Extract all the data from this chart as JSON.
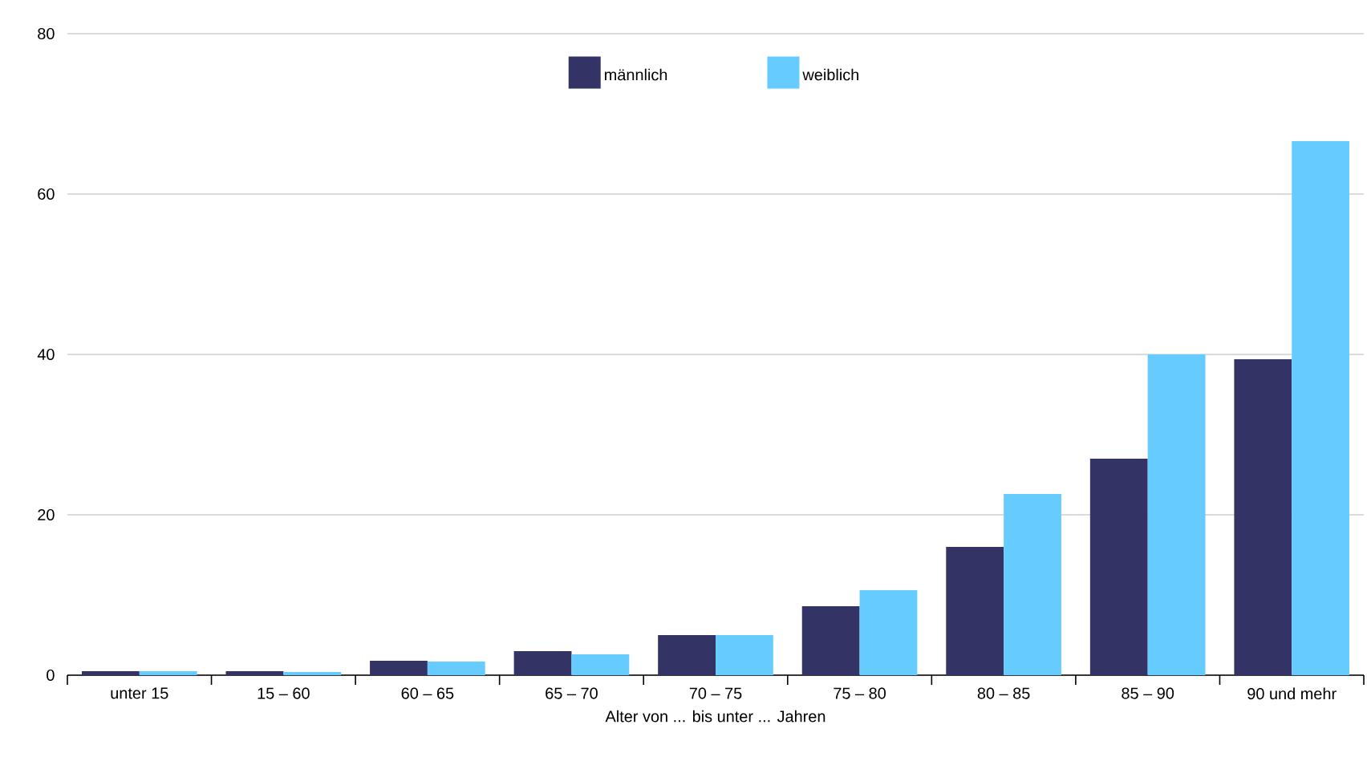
{
  "chart_data": {
    "type": "bar",
    "categories": [
      "unter 15",
      "15 – 60",
      "60 – 65",
      "65 – 70",
      "70 – 75",
      "75 – 80",
      "80 – 85",
      "85 – 90",
      "90 und mehr"
    ],
    "series": [
      {
        "name": "männlich",
        "color": "#333366",
        "values": [
          0.5,
          0.5,
          1.8,
          3.0,
          5.0,
          8.6,
          16.0,
          27.0,
          39.4
        ]
      },
      {
        "name": "weiblich",
        "color": "#66ccff",
        "values": [
          0.5,
          0.4,
          1.7,
          2.6,
          5.0,
          10.6,
          22.6,
          40.0,
          66.6
        ]
      }
    ],
    "xlabel": "Alter von ... bis unter ... Jahren",
    "ylim": [
      0,
      80
    ],
    "yticks": [
      0,
      20,
      40,
      60,
      80
    ],
    "grid": "y",
    "legend": "top"
  }
}
